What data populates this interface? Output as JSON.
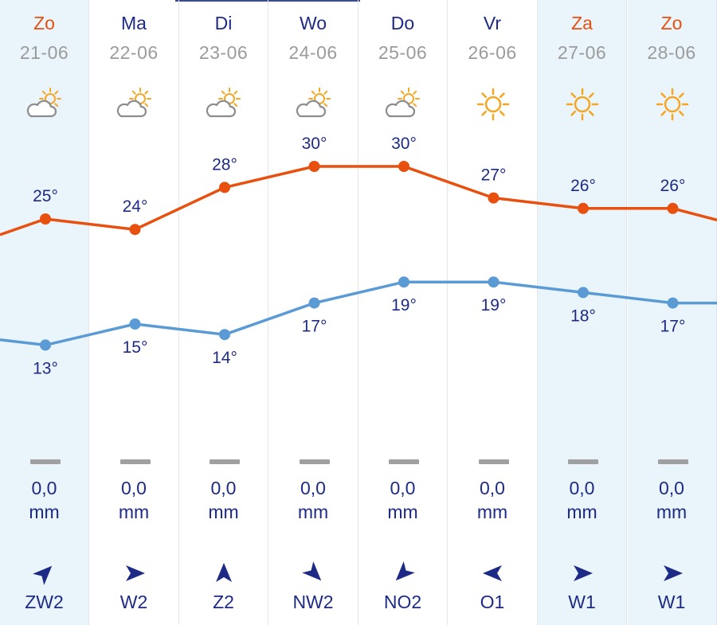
{
  "forecast": {
    "days": [
      {
        "name": "Zo",
        "date": "21-06",
        "weekend": true,
        "icon": "partly-cloudy-icon",
        "high": "25°",
        "low": "13°",
        "precip_value": "0,0",
        "precip_unit": "mm",
        "wind": "ZW2",
        "wind_icon": "wind-arrow-northeast-icon"
      },
      {
        "name": "Ma",
        "date": "22-06",
        "weekend": false,
        "icon": "partly-cloudy-icon",
        "high": "24°",
        "low": "15°",
        "precip_value": "0,0",
        "precip_unit": "mm",
        "wind": "W2",
        "wind_icon": "wind-arrow-east-icon"
      },
      {
        "name": "Di",
        "date": "23-06",
        "weekend": false,
        "icon": "partly-cloudy-icon",
        "high": "28°",
        "low": "14°",
        "precip_value": "0,0",
        "precip_unit": "mm",
        "wind": "Z2",
        "wind_icon": "wind-arrow-north-icon"
      },
      {
        "name": "Wo",
        "date": "24-06",
        "weekend": false,
        "icon": "partly-cloudy-icon",
        "high": "30°",
        "low": "17°",
        "precip_value": "0,0",
        "precip_unit": "mm",
        "wind": "NW2",
        "wind_icon": "wind-arrow-southeast-icon"
      },
      {
        "name": "Do",
        "date": "25-06",
        "weekend": false,
        "icon": "partly-cloudy-icon",
        "high": "30°",
        "low": "19°",
        "precip_value": "0,0",
        "precip_unit": "mm",
        "wind": "NO2",
        "wind_icon": "wind-arrow-southwest-icon"
      },
      {
        "name": "Vr",
        "date": "26-06",
        "weekend": false,
        "icon": "sun-icon",
        "high": "27°",
        "low": "19°",
        "precip_value": "0,0",
        "precip_unit": "mm",
        "wind": "O1",
        "wind_icon": "wind-arrow-west-icon"
      },
      {
        "name": "Za",
        "date": "27-06",
        "weekend": true,
        "icon": "sun-icon",
        "high": "26°",
        "low": "18°",
        "precip_value": "0,0",
        "precip_unit": "mm",
        "wind": "W1",
        "wind_icon": "wind-arrow-east-icon"
      },
      {
        "name": "Zo",
        "date": "28-06",
        "weekend": true,
        "icon": "sun-icon",
        "high": "26°",
        "low": "17°",
        "precip_value": "0,0",
        "precip_unit": "mm",
        "wind": "W1",
        "wind_icon": "wind-arrow-east-icon"
      }
    ]
  },
  "chart_data": {
    "type": "line",
    "categories": [
      "21-06",
      "22-06",
      "23-06",
      "24-06",
      "25-06",
      "26-06",
      "27-06",
      "28-06"
    ],
    "series": [
      {
        "values": [
          25,
          24,
          28,
          30,
          30,
          27,
          26,
          26
        ],
        "color": "#e8500f"
      },
      {
        "values": [
          13,
          15,
          14,
          17,
          19,
          19,
          18,
          17
        ],
        "color": "#5b9bd5"
      }
    ],
    "grid": false
  },
  "colors": {
    "high_line": "#e8500f",
    "low_line": "#5b9bd5",
    "text": "#1d2b86",
    "weekend_bg": "#eaf4fb",
    "weekend_text": "#e8500f",
    "sun": "#f5a623",
    "cloud": "#8c8c8c",
    "muted": "#9b9b9b"
  }
}
